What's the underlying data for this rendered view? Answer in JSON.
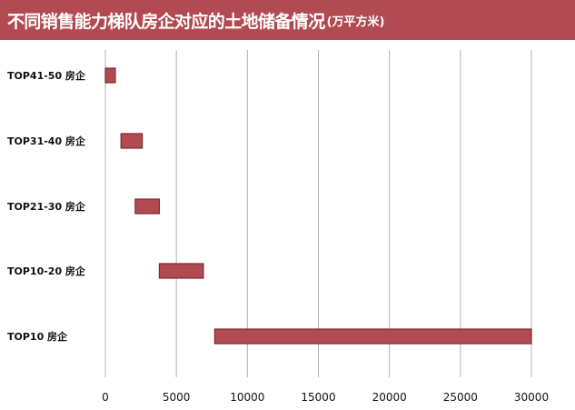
{
  "title": {
    "main": "不同销售能力梯队房企对应的土地储备情况",
    "unit": "(万平方米)"
  },
  "colors": {
    "title_bg": "#b24a52",
    "bar_fill": "#b24a52",
    "bar_stroke": "#7a2a30",
    "grid": "#b0b0b0"
  },
  "chart_data": {
    "type": "bar",
    "orientation": "horizontal",
    "bar_style": "floating range",
    "categories": [
      "TOP41-50 房企",
      "TOP31-40 房企",
      "TOP21-30 房企",
      "TOP10-20 房企",
      "TOP10 房企"
    ],
    "ranges": [
      [
        0,
        700
      ],
      [
        1100,
        2600
      ],
      [
        2100,
        3800
      ],
      [
        3800,
        6900
      ],
      [
        7700,
        30000
      ]
    ],
    "xlim": [
      0,
      30000
    ],
    "xticks": [
      "0",
      "5000",
      "10000",
      "15000",
      "20000",
      "25000",
      "30000"
    ],
    "xtick_values": [
      0,
      5000,
      10000,
      15000,
      20000,
      25000,
      30000
    ],
    "grid": "vertical"
  }
}
